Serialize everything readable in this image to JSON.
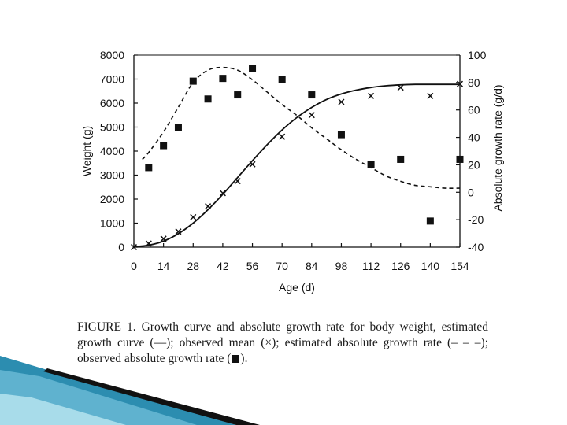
{
  "chart_data": {
    "type": "line",
    "xlabel": "Age (d)",
    "ylabel_left": "Weight (g)",
    "ylabel_right": "Absolute growth rate (g/d)",
    "x_ticks": [
      "0",
      "14",
      "28",
      "42",
      "56",
      "70",
      "84",
      "98",
      "112",
      "126",
      "140",
      "154"
    ],
    "y_left_ticks": [
      "0",
      "1000",
      "2000",
      "3000",
      "4000",
      "5000",
      "6000",
      "7000",
      "8000"
    ],
    "y_right_ticks": [
      "-40",
      "-20",
      "0",
      "20",
      "40",
      "60",
      "80",
      "100"
    ],
    "xlim": [
      0,
      154
    ],
    "ylim_left": [
      0,
      8000
    ],
    "ylim_right": [
      -40,
      100
    ],
    "grid": false,
    "series": [
      {
        "axis": "left",
        "style": "solid line",
        "x": [
          0,
          7,
          14,
          21,
          28,
          35,
          42,
          49,
          56,
          63,
          70,
          77,
          84,
          91,
          98,
          105,
          112,
          119,
          126,
          133,
          140,
          147,
          154
        ],
        "y": [
          20,
          80,
          250,
          560,
          1000,
          1560,
          2200,
          2900,
          3600,
          4270,
          4880,
          5400,
          5820,
          6150,
          6380,
          6540,
          6650,
          6720,
          6760,
          6780,
          6780,
          6780,
          6780
        ]
      },
      {
        "axis": "left",
        "style": "x markers",
        "x": [
          0,
          7,
          14,
          21,
          28,
          35,
          42,
          49,
          56,
          70,
          84,
          98,
          112,
          126,
          140,
          154
        ],
        "y": [
          0,
          150,
          350,
          650,
          1250,
          1700,
          2250,
          2750,
          3450,
          4600,
          5500,
          6050,
          6300,
          6650,
          6300,
          6800
        ]
      },
      {
        "axis": "right",
        "style": "dashed line",
        "x": [
          4,
          7,
          14,
          21,
          28,
          35,
          42,
          49,
          56,
          63,
          70,
          77,
          84,
          91,
          98,
          105,
          112,
          119,
          126,
          133,
          140,
          147,
          154
        ],
        "y": [
          24,
          29,
          44,
          62,
          80,
          89,
          91,
          89,
          82,
          73,
          64,
          56,
          47,
          39,
          31,
          24,
          18,
          12,
          8,
          5,
          4,
          3,
          3
        ]
      },
      {
        "axis": "right",
        "style": "square markers",
        "x": [
          7,
          14,
          21,
          28,
          35,
          42,
          49,
          56,
          70,
          84,
          98,
          112,
          126,
          140,
          154
        ],
        "y": [
          18,
          34,
          47,
          81,
          68,
          83,
          71,
          90,
          82,
          71,
          42,
          20,
          24,
          -21,
          24
        ]
      }
    ]
  },
  "caption": {
    "label": "FIGURE 1.",
    "text_part1": " Growth curve and absolute growth rate for body weight, estimated growth curve (—); observed mean (×); estimated absolute growth rate (– – –); observed absolute growth rate (",
    "text_part2": ")."
  },
  "colors": {
    "teal_dark": "#1f6f8f",
    "teal_light": "#7ec6d9",
    "ink": "#111111"
  }
}
